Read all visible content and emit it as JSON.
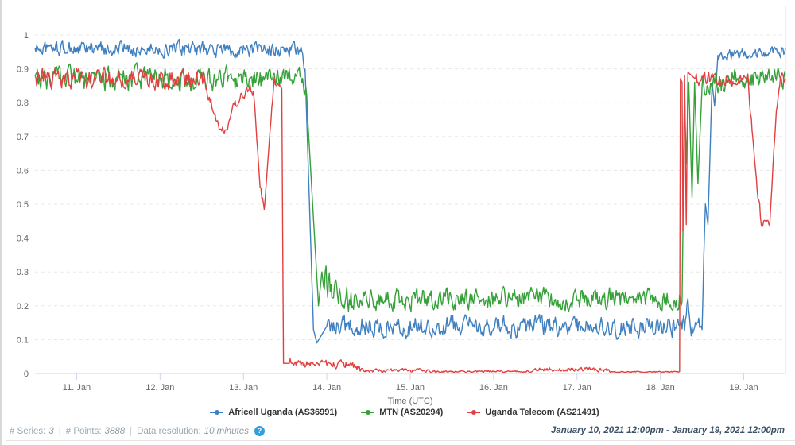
{
  "footer": {
    "series_label": "# Series:",
    "series_value": "3",
    "points_label": "# Points:",
    "points_value": "3888",
    "resolution_label": "Data resolution:",
    "resolution_value": "10 minutes",
    "separator": "|",
    "help_icon": "?",
    "date_range": "January 10, 2021 12:00pm - January 19, 2021 12:00pm"
  },
  "chart_data": {
    "type": "line",
    "title": "",
    "xlabel": "Time (UTC)",
    "ylabel": "",
    "x_start": "January 10, 2021 12:00pm",
    "x_end": "January 19, 2021 12:00pm",
    "x_range_days": [
      0,
      9
    ],
    "x_ticks": [
      {
        "day_offset": 0.5,
        "label": "11. Jan"
      },
      {
        "day_offset": 1.5,
        "label": "12. Jan"
      },
      {
        "day_offset": 2.5,
        "label": "13. Jan"
      },
      {
        "day_offset": 3.5,
        "label": "14. Jan"
      },
      {
        "day_offset": 4.5,
        "label": "15. Jan"
      },
      {
        "day_offset": 5.5,
        "label": "16. Jan"
      },
      {
        "day_offset": 6.5,
        "label": "17. Jan"
      },
      {
        "day_offset": 7.5,
        "label": "18. Jan"
      },
      {
        "day_offset": 8.5,
        "label": "19. Jan"
      }
    ],
    "ylim": [
      0,
      1
    ],
    "y_ticks": [
      {
        "value": 0,
        "label": "0"
      },
      {
        "value": 0.1,
        "label": "0.1"
      },
      {
        "value": 0.2,
        "label": "0.2"
      },
      {
        "value": 0.3,
        "label": "0.3"
      },
      {
        "value": 0.4,
        "label": "0.4"
      },
      {
        "value": 0.5,
        "label": "0.5"
      },
      {
        "value": 0.6,
        "label": "0.6"
      },
      {
        "value": 0.7,
        "label": "0.7"
      },
      {
        "value": 0.8,
        "label": "0.8"
      },
      {
        "value": 0.9,
        "label": "0.9"
      },
      {
        "value": 1,
        "label": "1"
      }
    ],
    "grid": "horizontal-dashed",
    "legend_position": "bottom",
    "style": {
      "grid_line": "#e8e8e8",
      "axis_line": "#ccd6eb",
      "plot_right_border": "#dddddd",
      "label_color": "#666666"
    },
    "keypoint_format": "[days_since_start, value, noise_amplitude]",
    "series": [
      {
        "name": "Africell Uganda (AS36991)",
        "color": "#4080c0",
        "keypoints": [
          [
            0,
            0.96,
            0.025
          ],
          [
            3.2,
            0.955,
            0.022
          ],
          [
            3.24,
            0.9,
            0
          ],
          [
            3.34,
            0.13,
            0
          ],
          [
            3.38,
            0.09,
            0
          ],
          [
            3.5,
            0.14,
            0.034
          ],
          [
            7.8,
            0.14,
            0.03
          ],
          [
            7.83,
            0.21,
            0.02
          ],
          [
            7.87,
            0.13,
            0.03
          ],
          [
            8.0,
            0.14,
            0.034
          ],
          [
            8.04,
            0.5,
            0
          ],
          [
            8.07,
            0.44,
            0
          ],
          [
            8.12,
            0.86,
            0
          ],
          [
            8.15,
            0.79,
            0
          ],
          [
            8.19,
            0.94,
            0.018
          ],
          [
            9.0,
            0.95,
            0.018
          ]
        ]
      },
      {
        "name": "MTN (AS20294)",
        "color": "#35a139",
        "keypoints": [
          [
            0,
            0.87,
            0.038
          ],
          [
            3.22,
            0.87,
            0.038
          ],
          [
            3.26,
            0.8,
            0
          ],
          [
            3.4,
            0.2,
            0
          ],
          [
            3.44,
            0.3,
            0.05
          ],
          [
            3.55,
            0.24,
            0.045
          ],
          [
            3.8,
            0.22,
            0.034
          ],
          [
            7.76,
            0.22,
            0.034
          ],
          [
            7.79,
            0.83,
            0
          ],
          [
            7.81,
            0.62,
            0
          ],
          [
            7.84,
            0.86,
            0
          ],
          [
            7.88,
            0.52,
            0
          ],
          [
            7.91,
            0.86,
            0
          ],
          [
            7.95,
            0.56,
            0
          ],
          [
            8.0,
            0.85,
            0.04
          ],
          [
            8.4,
            0.87,
            0.034
          ],
          [
            9.0,
            0.87,
            0.034
          ]
        ]
      },
      {
        "name": "Uganda Telecom (AS21491)",
        "color": "#e04040",
        "keypoints": [
          [
            0,
            0.87,
            0.032
          ],
          [
            2.02,
            0.87,
            0.025
          ],
          [
            2.12,
            0.79,
            0.015
          ],
          [
            2.2,
            0.73,
            0.015
          ],
          [
            2.3,
            0.72,
            0.012
          ],
          [
            2.38,
            0.79,
            0.02
          ],
          [
            2.52,
            0.83,
            0.02
          ],
          [
            2.62,
            0.84,
            0.012
          ],
          [
            2.7,
            0.55,
            0.02
          ],
          [
            2.75,
            0.48,
            0
          ],
          [
            2.82,
            0.72,
            0.02
          ],
          [
            2.87,
            0.86,
            0.012
          ],
          [
            2.965,
            0.84,
            0.012
          ],
          [
            2.975,
            0.03,
            0
          ],
          [
            3.05,
            0.03,
            0.013
          ],
          [
            3.8,
            0.025,
            0.013
          ],
          [
            3.9,
            0.01,
            0.006
          ],
          [
            4.7,
            0.008,
            0.006
          ],
          [
            4.8,
            0.006,
            0.003
          ],
          [
            5.95,
            0.006,
            0.003
          ],
          [
            6.0,
            0.012,
            0.007
          ],
          [
            6.85,
            0.012,
            0.007
          ],
          [
            6.9,
            0.005,
            0.002
          ],
          [
            7.73,
            0.005,
            0.002
          ],
          [
            7.74,
            0.87,
            0
          ],
          [
            7.76,
            0.86,
            0
          ],
          [
            7.77,
            0.42,
            0
          ],
          [
            7.79,
            0.88,
            0
          ],
          [
            7.81,
            0.44,
            0
          ],
          [
            7.83,
            0.89,
            0
          ],
          [
            7.92,
            0.87,
            0.024
          ],
          [
            8.55,
            0.87,
            0.024
          ],
          [
            8.63,
            0.62,
            0.025
          ],
          [
            8.71,
            0.44,
            0.015
          ],
          [
            8.81,
            0.45,
            0.015
          ],
          [
            8.89,
            0.78,
            0.02
          ],
          [
            8.94,
            0.88,
            0.015
          ],
          [
            9.0,
            0.87,
            0.015
          ]
        ]
      }
    ]
  }
}
